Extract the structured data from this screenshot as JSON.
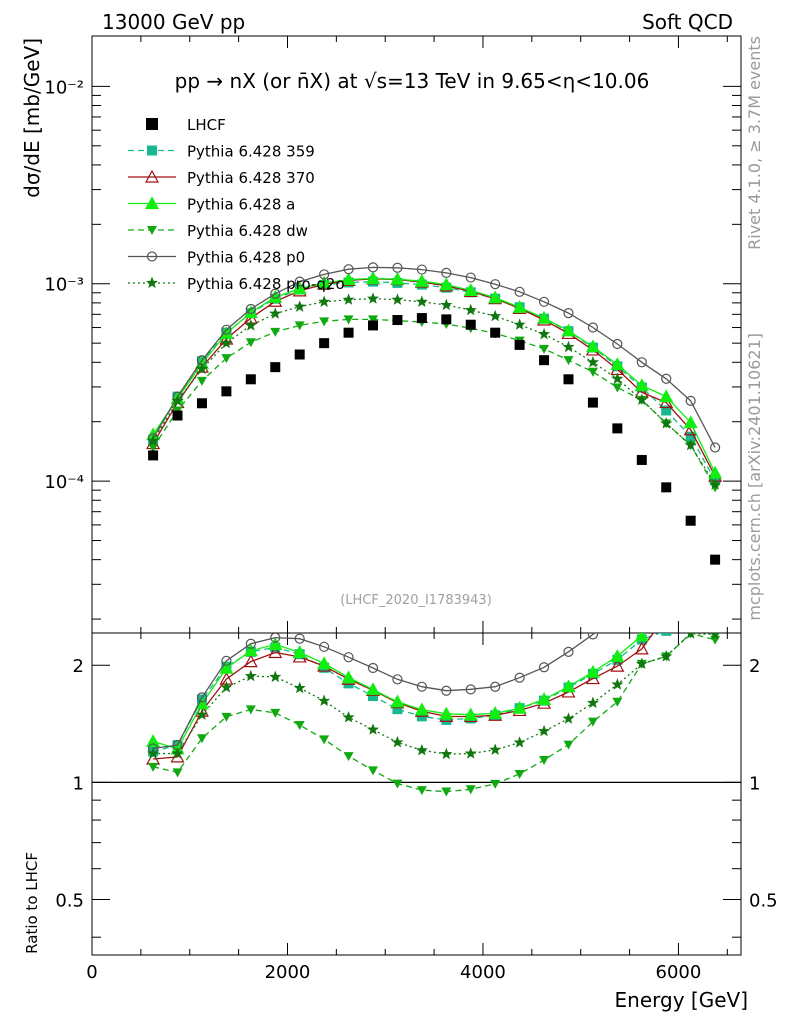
{
  "header": {
    "left": "13000 GeV pp",
    "right": "Soft QCD"
  },
  "side_labels": {
    "rivet": "Rivet 4.1.0, ≥ 3.7M events",
    "mcplots": "mcplots.cern.ch [arXiv:2401.10621]"
  },
  "chart_data": {
    "type": "scatter",
    "title": "pp → nX (or n̄X) at √s=13 TeV in 9.65<η<10.06",
    "watermark": "(LHCF_2020_I1783943)",
    "xlabel": "Energy [GeV]",
    "ylabel": "dσ/dE [mb/GeV]",
    "ratio_ylabel": "Ratio to LHCF",
    "xlim": [
      0,
      6640
    ],
    "ylim": [
      1.7e-05,
      0.018
    ],
    "ratio_ylim": [
      0.36,
      2.42
    ],
    "x_ticks": [
      "0",
      "2000",
      "4000",
      "6000"
    ],
    "y_ticks": [
      "10⁻⁴",
      "10⁻³",
      "10⁻²"
    ],
    "ratio_ticks": [
      "0.5",
      "1",
      "2"
    ],
    "x": [
      625,
      875,
      1125,
      1375,
      1625,
      1875,
      2125,
      2375,
      2625,
      2875,
      3125,
      3375,
      3625,
      3875,
      4125,
      4375,
      4625,
      4875,
      5125,
      5375,
      5625,
      5875,
      6125,
      6375
    ],
    "reference": {
      "name": "LHCF",
      "color": "#000000",
      "values": [
        0.000135,
        0.000215,
        0.000248,
        0.000285,
        0.000328,
        0.000378,
        0.000438,
        0.0005,
        0.000565,
        0.000615,
        0.000655,
        0.00067,
        0.00066,
        0.00062,
        0.000565,
        0.00049,
        0.00041,
        0.000328,
        0.00025,
        0.000185,
        0.000128,
        9.3e-05,
        6.3e-05,
        4e-05
      ]
    },
    "series": [
      {
        "name": "Pythia 6.428 359",
        "color": "#17b890",
        "marker": "square",
        "dash": "dashed",
        "values": [
          0.000162,
          0.000268,
          0.000405,
          0.000565,
          0.00071,
          0.00084,
          0.000935,
          0.000985,
          0.001015,
          0.001025,
          0.00101,
          0.00099,
          0.000955,
          0.000905,
          0.00084,
          0.00076,
          0.000665,
          0.000575,
          0.000475,
          0.000382,
          0.000298,
          0.000228,
          0.000168,
          0.000101
        ]
      },
      {
        "name": "Pythia 6.428 370",
        "color": "#a01010",
        "marker": "triangle-open",
        "dash": "solid",
        "values": [
          0.000155,
          0.00025,
          0.000378,
          0.000525,
          0.00067,
          0.000815,
          0.00092,
          0.000995,
          0.00104,
          0.00106,
          0.00105,
          0.00102,
          0.000975,
          0.000915,
          0.00084,
          0.00075,
          0.000655,
          0.00056,
          0.000462,
          0.000368,
          0.000282,
          0.00025,
          0.000182,
          0.000106
        ]
      },
      {
        "name": "Pythia 6.428 a",
        "color": "#11ee11",
        "marker": "triangle",
        "dash": "solid",
        "values": [
          0.000172,
          0.000262,
          0.000395,
          0.00056,
          0.000715,
          0.000855,
          0.000945,
          0.00101,
          0.00105,
          0.001065,
          0.001055,
          0.00103,
          0.00099,
          0.000925,
          0.00085,
          0.00076,
          0.00067,
          0.000578,
          0.00048,
          0.00039,
          0.000305,
          0.000268,
          0.000198,
          0.00011
        ]
      },
      {
        "name": "Pythia 6.428 dw",
        "color": "#11a911",
        "marker": "triangle-down",
        "dash": "dashed",
        "values": [
          0.000148,
          0.000228,
          0.000322,
          0.00042,
          0.000505,
          0.00057,
          0.000615,
          0.000645,
          0.00066,
          0.00066,
          0.00065,
          0.00064,
          0.000625,
          0.000595,
          0.00056,
          0.000515,
          0.000468,
          0.00041,
          0.000358,
          0.000298,
          0.000258,
          0.000196,
          0.000152,
          9.3e-05
        ]
      },
      {
        "name": "Pythia 6.428 p0",
        "color": "#555555",
        "marker": "circle-open",
        "dash": "solid",
        "values": [
          0.000165,
          0.000268,
          0.00041,
          0.000585,
          0.000745,
          0.00089,
          0.001025,
          0.001115,
          0.001185,
          0.00121,
          0.001205,
          0.00118,
          0.001135,
          0.001075,
          0.000995,
          0.00091,
          0.00081,
          0.00071,
          0.0006,
          0.000495,
          0.0004,
          0.00033,
          0.000255,
          0.000148
        ]
      },
      {
        "name": "Pythia 6.428 pro-q2o",
        "color": "#117711",
        "marker": "star",
        "dash": "dotted",
        "values": [
          0.00016,
          0.000255,
          0.00037,
          0.0005,
          0.000615,
          0.000705,
          0.000765,
          0.00081,
          0.00083,
          0.00084,
          0.00083,
          0.00081,
          0.00078,
          0.000735,
          0.000685,
          0.00062,
          0.000555,
          0.000478,
          0.0004,
          0.00033,
          0.000258,
          0.000196,
          0.000152,
          9.6e-05
        ]
      }
    ],
    "legend": "top-left"
  }
}
